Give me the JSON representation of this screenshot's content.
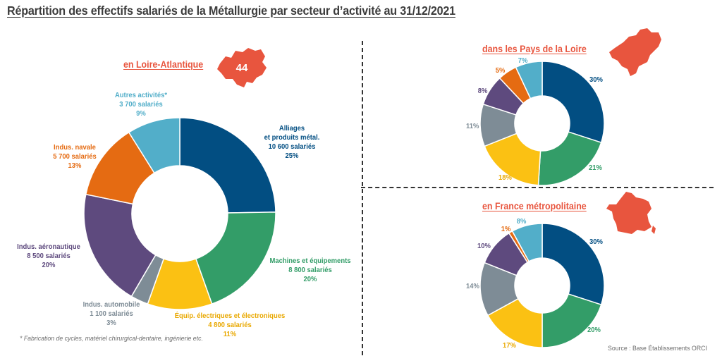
{
  "title": "Répartition des effectifs salariés de la Métallurgie par secteur d’activité au 31/12/2021",
  "footnote": "* Fabrication de cycles, matériel chirurgical-dentaire, ingénierie etc.",
  "source": "Source : Base Établissements ORCI",
  "colors": {
    "alliages": "#024e82",
    "machines": "#339d68",
    "electriques": "#fbc113",
    "automobile": "#7e8c96",
    "aeronautique": "#5e4a7e",
    "navale": "#e56b12",
    "autres": "#52aec9",
    "accent": "#e8553e"
  },
  "badge": "44",
  "labels_la": [
    {
      "line1": "Alliages",
      "line2": "et produits métal.",
      "line3": "10 600 salariés",
      "line4": "25%"
    },
    {
      "line1": "Machines et équipements",
      "line2": "8 800 salariés",
      "line3": "20%"
    },
    {
      "line1": "Équip. électriques et électroniques",
      "line2": "4 800 salariés",
      "line3": "11%"
    },
    {
      "line1": "Indus. automobile",
      "line2": "1 100 salariés",
      "line3": "3%"
    },
    {
      "line1": "Indus. aéronautique",
      "line2": "8 500 salariés",
      "line3": "20%"
    },
    {
      "line1": "Indus. navale",
      "line2": "5 700 salariés",
      "line3": "13%"
    },
    {
      "line1": "Autres activités*",
      "line2": "3 700 salariés",
      "line3": "9%"
    }
  ],
  "chart_data": [
    {
      "type": "pie",
      "title": "en Loire-Atlantique",
      "categories": [
        "Alliages et produits métal.",
        "Machines et équipements",
        "Équip. électriques et électroniques",
        "Indus. automobile",
        "Indus. aéronautique",
        "Indus. navale",
        "Autres activités*"
      ],
      "employees": [
        10600,
        8800,
        4800,
        1100,
        8500,
        5700,
        3700
      ],
      "values": [
        25,
        20,
        11,
        3,
        20,
        13,
        9
      ],
      "unit": "%"
    },
    {
      "type": "pie",
      "title": "dans les Pays de la Loire",
      "categories": [
        "Alliages et produits métal.",
        "Machines et équipements",
        "Équip. électriques et électroniques",
        "Indus. automobile",
        "Indus. aéronautique",
        "Indus. navale",
        "Autres activités*"
      ],
      "values": [
        30,
        21,
        18,
        11,
        8,
        5,
        7
      ],
      "labels": [
        "30%",
        "21%",
        "18%",
        "11%",
        "8%",
        "5%",
        "7%"
      ],
      "unit": "%"
    },
    {
      "type": "pie",
      "title": "en France métropolitaine",
      "categories": [
        "Alliages et produits métal.",
        "Machines et équipements",
        "Équip. électriques et électroniques",
        "Indus. automobile",
        "Indus. aéronautique",
        "Indus. navale",
        "Autres activités*"
      ],
      "values": [
        30,
        20,
        17,
        14,
        10,
        1,
        8
      ],
      "labels": [
        "30%",
        "20%",
        "17%",
        "14%",
        "10%",
        "1%",
        "8%"
      ],
      "unit": "%"
    }
  ]
}
